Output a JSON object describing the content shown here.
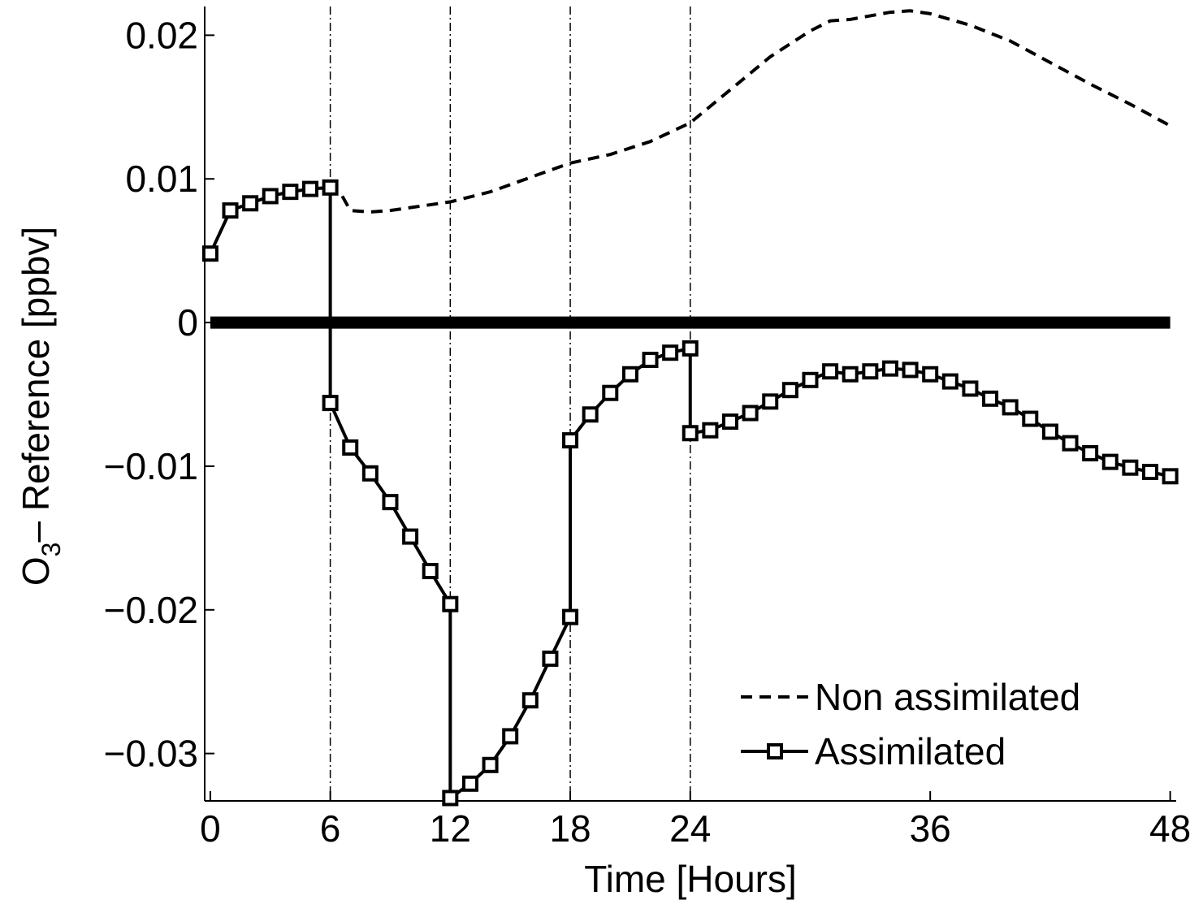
{
  "chart_data": {
    "type": "line",
    "title": "",
    "xlabel": "Time [Hours]",
    "ylabel": {
      "main": "O",
      "sub": "3",
      "rest": "– Reference [ppbv]"
    },
    "xlim": [
      -0.28,
      48.3
    ],
    "ylim": [
      -0.0333,
      0.022
    ],
    "xticks": [
      0,
      6,
      12,
      18,
      24,
      36,
      48
    ],
    "yticks": [
      0.02,
      0.01,
      0,
      -0.01,
      -0.02,
      -0.03
    ],
    "ytick_labels": [
      "0.02",
      "0.01",
      "0",
      "−0.01",
      "−0.02",
      "−0.03"
    ],
    "grid": false,
    "vertical_reference_lines": [
      6,
      12,
      18,
      24
    ],
    "zero_line": {
      "x": [
        0,
        48
      ],
      "y": 0
    },
    "legend": {
      "placement": "bottom-right",
      "entries": [
        "Non assimilated",
        "Assimilated"
      ]
    },
    "series": [
      {
        "name": "Non assimilated",
        "style": "dashed",
        "x": [
          6.6,
          7,
          8,
          9,
          10,
          11,
          12,
          14,
          16,
          18,
          20,
          22,
          24,
          26,
          28,
          30,
          31,
          32,
          34,
          35,
          36,
          38,
          40,
          42,
          44,
          46,
          48
        ],
        "y": [
          0.0088,
          0.0078,
          0.0077,
          0.0078,
          0.008,
          0.0082,
          0.0084,
          0.0091,
          0.0101,
          0.0111,
          0.0117,
          0.0126,
          0.0139,
          0.0162,
          0.0185,
          0.0203,
          0.021,
          0.0211,
          0.0216,
          0.0217,
          0.0215,
          0.0207,
          0.0196,
          0.0181,
          0.0166,
          0.0152,
          0.0137
        ]
      },
      {
        "name": "Assimilated",
        "style": "solid-square-markers",
        "x": [
          0,
          1,
          2,
          3,
          4,
          5,
          6,
          6,
          7,
          8,
          9,
          10,
          11,
          12,
          12,
          13,
          14,
          15,
          16,
          17,
          18,
          18,
          19,
          20,
          21,
          22,
          23,
          24,
          24,
          25,
          26,
          27,
          28,
          29,
          30,
          31,
          32,
          33,
          34,
          35,
          36,
          37,
          38,
          39,
          40,
          41,
          42,
          43,
          44,
          45,
          46,
          47,
          48
        ],
        "y": [
          0.0048,
          0.0078,
          0.0083,
          0.0088,
          0.0091,
          0.0093,
          0.0094,
          -0.0056,
          -0.0087,
          -0.0105,
          -0.0125,
          -0.0149,
          -0.0173,
          -0.0196,
          -0.0331,
          -0.0321,
          -0.0308,
          -0.0288,
          -0.0263,
          -0.0234,
          -0.0205,
          -0.0082,
          -0.0064,
          -0.0049,
          -0.0036,
          -0.0026,
          -0.0021,
          -0.0018,
          -0.0077,
          -0.0075,
          -0.0069,
          -0.0063,
          -0.0055,
          -0.0047,
          -0.004,
          -0.0034,
          -0.0036,
          -0.0034,
          -0.0032,
          -0.0033,
          -0.0036,
          -0.0041,
          -0.0046,
          -0.0053,
          -0.0059,
          -0.0067,
          -0.0076,
          -0.0084,
          -0.0091,
          -0.0097,
          -0.0101,
          -0.0104,
          -0.0107
        ]
      }
    ]
  }
}
